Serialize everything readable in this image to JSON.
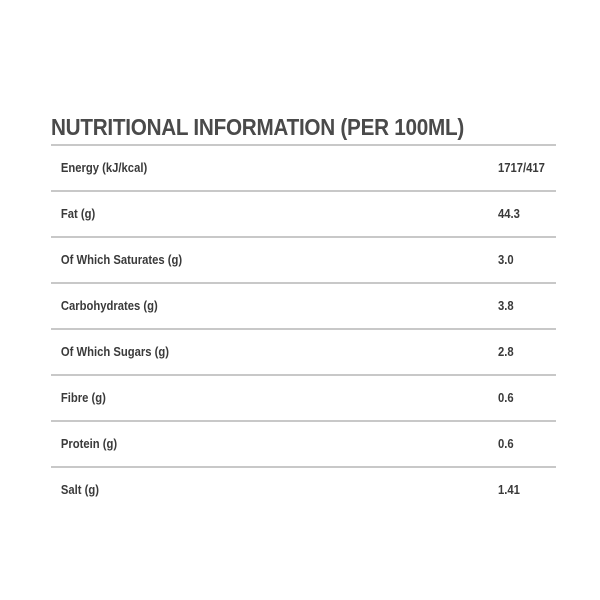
{
  "title": "NUTRITIONAL INFORMATION (PER 100ML)",
  "rows": [
    {
      "label": "Energy (kJ/kcal)",
      "value": "1717/417"
    },
    {
      "label": "Fat (g)",
      "value": "44.3"
    },
    {
      "label": "Of Which Saturates (g)",
      "value": "3.0"
    },
    {
      "label": "Carbohydrates (g)",
      "value": "3.8"
    },
    {
      "label": "Of Which Sugars (g)",
      "value": "2.8"
    },
    {
      "label": "Fibre (g)",
      "value": "0.6"
    },
    {
      "label": "Protein (g)",
      "value": "0.6"
    },
    {
      "label": "Salt (g)",
      "value": "1.41"
    }
  ]
}
